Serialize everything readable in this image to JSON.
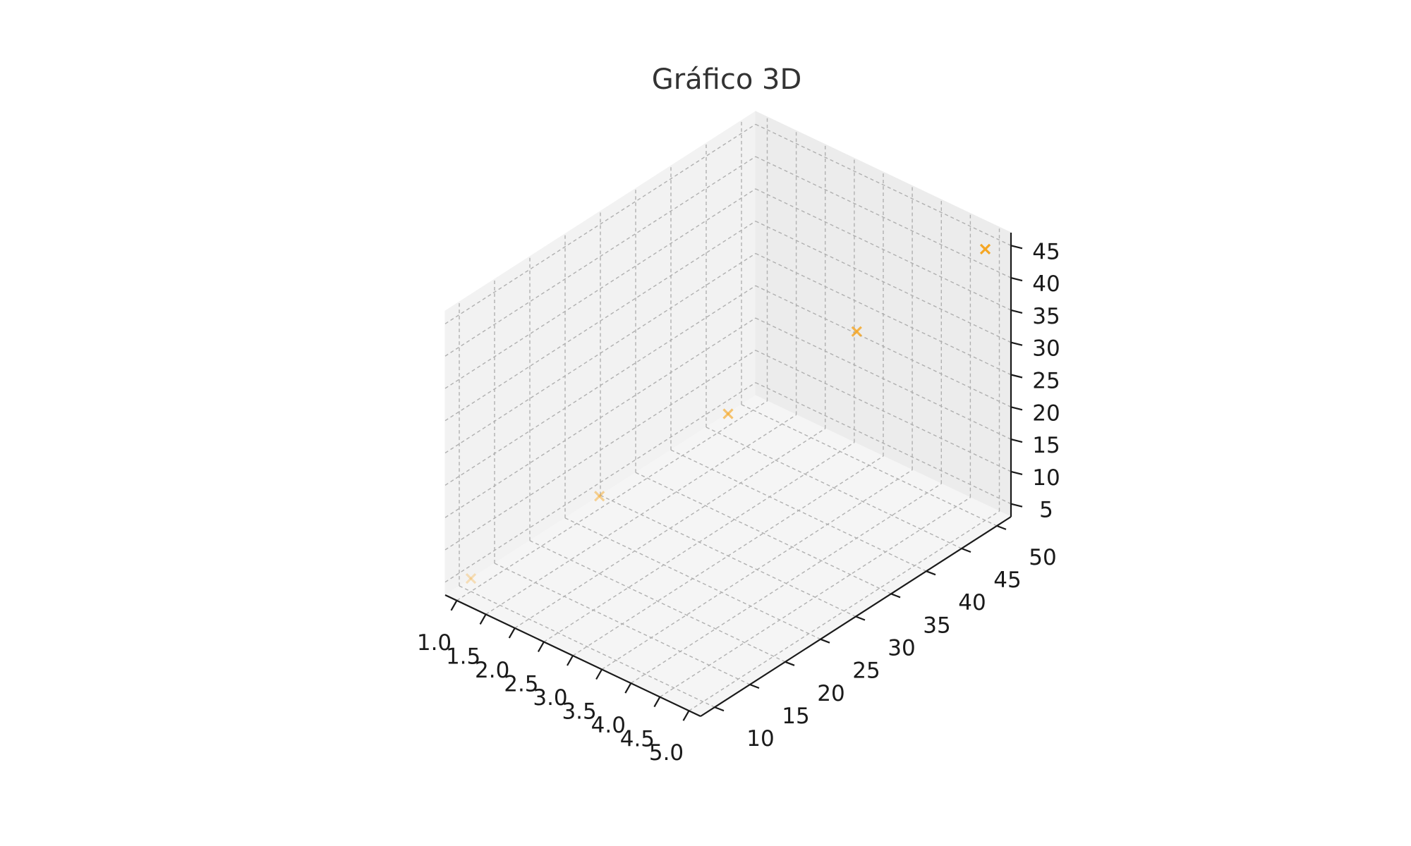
{
  "chart_data": {
    "type": "scatter",
    "projection": "3d",
    "title": "Gráfico 3D",
    "xlabel": "",
    "ylabel": "",
    "zlabel": "",
    "grid": true,
    "marker": "x",
    "marker_color": "#f5a623",
    "depth_shading": true,
    "xlim": [
      0.8,
      5.2
    ],
    "ylim": [
      8,
      52
    ],
    "zlim": [
      3,
      47
    ],
    "x_ticks": [
      "1.0",
      "1.5",
      "2.0",
      "2.5",
      "3.0",
      "3.5",
      "4.0",
      "4.5",
      "5.0"
    ],
    "y_ticks": [
      "10",
      "15",
      "20",
      "25",
      "30",
      "35",
      "40",
      "45",
      "50"
    ],
    "z_ticks": [
      "5",
      "10",
      "15",
      "20",
      "25",
      "30",
      "35",
      "40",
      "45"
    ],
    "points": [
      {
        "x": 1,
        "y": 10,
        "z": 5
      },
      {
        "x": 2,
        "y": 20,
        "z": 15
      },
      {
        "x": 3,
        "y": 30,
        "z": 25
      },
      {
        "x": 4,
        "y": 40,
        "z": 35
      },
      {
        "x": 5,
        "y": 50,
        "z": 45
      }
    ]
  }
}
